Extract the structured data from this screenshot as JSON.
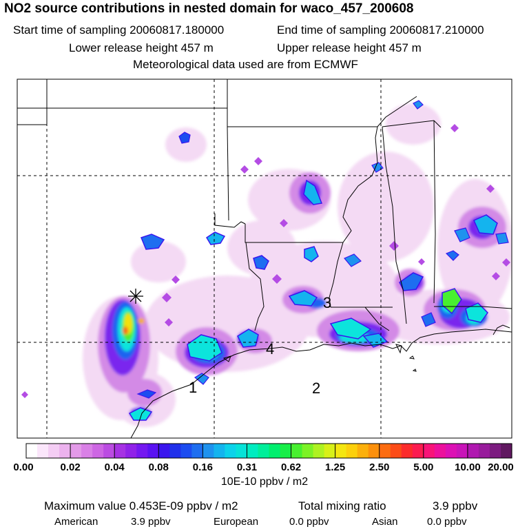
{
  "header": {
    "title": "NO2 source contributions in nested domain for waco_457_200608",
    "start_time": "Start time of sampling 20060817.180000",
    "end_time": "End time of sampling 20060817.210000",
    "lower_release": "Lower release height  457 m",
    "upper_release": "Upper release height  457 m",
    "met_data": "Meteorological data used are from ECMWF"
  },
  "map": {
    "markers": [
      "1",
      "2",
      "3",
      "4"
    ],
    "source_symbol": "source-crosshair-icon"
  },
  "colorbar": {
    "tick_labels": [
      "0.00",
      "0.02",
      "0.04",
      "0.08",
      "0.16",
      "0.31",
      "0.62",
      "1.25",
      "2.50",
      "5.00",
      "10.00",
      "20.00"
    ],
    "colors": [
      "#ffffff",
      "#fbe6fb",
      "#f4cdf4",
      "#ecb2ee",
      "#e39ae8",
      "#d980e6",
      "#cd66e3",
      "#bb4ce2",
      "#a632e3",
      "#9022e8",
      "#7418f0",
      "#5a12f2",
      "#3a16ee",
      "#2030ea",
      "#1c4cf0",
      "#1e6ef0",
      "#1e92ee",
      "#14b4ee",
      "#0cd2ea",
      "#06e2d8",
      "#00ecc0",
      "#00ee9a",
      "#00ee6e",
      "#18ee48",
      "#48f030",
      "#7cf226",
      "#aef222",
      "#d8f018",
      "#f4e610",
      "#fcd00c",
      "#fcb00c",
      "#fc900c",
      "#fc6c10",
      "#fc4c18",
      "#fc2c2c",
      "#fc1c50",
      "#f81478",
      "#ec109c",
      "#dc10b4",
      "#c814b8",
      "#b018b0",
      "#981c9c",
      "#7c1c80",
      "#601860"
    ],
    "units": "10E-10 ppbv / m2"
  },
  "footer": {
    "max_value": "Maximum value  0.453E-09 ppbv / m2",
    "total_label": "Total mixing ratio",
    "total_value": "3.9 ppbv",
    "american_label": "American",
    "american_value": "3.9 ppbv",
    "european_label": "European",
    "european_value": "0.0 ppbv",
    "asian_label": "Asian",
    "asian_value": "0.0 ppbv"
  }
}
